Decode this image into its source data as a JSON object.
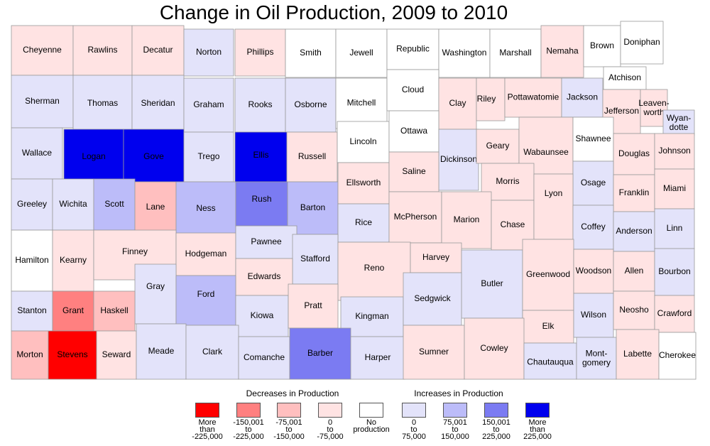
{
  "title": "Change in Oil Production, 2009 to 2010",
  "colors": {
    "dec_gt225k": "#ff0000",
    "dec_150_225k": "#ff8080",
    "dec_75_150k": "#ffbfbf",
    "dec_0_75k": "#ffe3e3",
    "none": "#ffffff",
    "inc_0_75k": "#e3e3fa",
    "inc_75_150k": "#bcbcf9",
    "inc_150_225k": "#7b7bf2",
    "inc_gt225k": "#0000ee"
  },
  "legend": {
    "decreases_heading": "Decreases in Production",
    "increases_heading": "Increases in Production",
    "classes": [
      {
        "key": "dec_gt225k",
        "lines": [
          "More",
          "than",
          "-225,000"
        ]
      },
      {
        "key": "dec_150_225k",
        "lines": [
          "-150,001",
          "to",
          "-225,000"
        ]
      },
      {
        "key": "dec_75_150k",
        "lines": [
          "-75,001",
          "to",
          "-150,000"
        ]
      },
      {
        "key": "dec_0_75k",
        "lines": [
          "0",
          "to",
          "-75,000"
        ]
      },
      {
        "key": "none",
        "lines": [
          "No",
          "production"
        ]
      },
      {
        "key": "inc_0_75k",
        "lines": [
          "0",
          "to",
          "75,000"
        ]
      },
      {
        "key": "inc_75_150k",
        "lines": [
          "75,001",
          "to",
          "150,000"
        ]
      },
      {
        "key": "inc_150_225k",
        "lines": [
          "150,001",
          "to",
          "225,000"
        ]
      },
      {
        "key": "inc_gt225k",
        "lines": [
          "More",
          "than",
          "225,000"
        ]
      }
    ]
  },
  "counties": [
    {
      "name": "Cheyenne",
      "class": "dec_0_75k"
    },
    {
      "name": "Rawlins",
      "class": "dec_0_75k"
    },
    {
      "name": "Decatur",
      "class": "dec_0_75k"
    },
    {
      "name": "Norton",
      "class": "inc_0_75k"
    },
    {
      "name": "Phillips",
      "class": "dec_0_75k"
    },
    {
      "name": "Smith",
      "class": "none"
    },
    {
      "name": "Jewell",
      "class": "none"
    },
    {
      "name": "Republic",
      "class": "none"
    },
    {
      "name": "Washington",
      "class": "none"
    },
    {
      "name": "Marshall",
      "class": "none"
    },
    {
      "name": "Nemaha",
      "class": "dec_0_75k"
    },
    {
      "name": "Brown",
      "class": "none"
    },
    {
      "name": "Doniphan",
      "class": "none"
    },
    {
      "name": "Atchison",
      "class": "none"
    },
    {
      "name": "Sherman",
      "class": "inc_0_75k"
    },
    {
      "name": "Thomas",
      "class": "inc_0_75k"
    },
    {
      "name": "Sheridan",
      "class": "inc_0_75k"
    },
    {
      "name": "Graham",
      "class": "inc_0_75k"
    },
    {
      "name": "Rooks",
      "class": "inc_0_75k"
    },
    {
      "name": "Osborne",
      "class": "inc_0_75k"
    },
    {
      "name": "Mitchell",
      "class": "none"
    },
    {
      "name": "Cloud",
      "class": "none"
    },
    {
      "name": "Clay",
      "class": "dec_0_75k"
    },
    {
      "name": "Riley",
      "class": "dec_0_75k"
    },
    {
      "name": "Pottawatomie",
      "class": "dec_0_75k"
    },
    {
      "name": "Jackson",
      "class": "inc_0_75k"
    },
    {
      "name": "Jefferson",
      "class": "dec_0_75k"
    },
    {
      "name": "Leaven-worth",
      "class": "dec_0_75k",
      "lines": [
        "Leaven-",
        "worth"
      ]
    },
    {
      "name": "Wyan-dotte",
      "class": "inc_0_75k",
      "lines": [
        "Wyan-",
        "dotte"
      ]
    },
    {
      "name": "Wallace",
      "class": "inc_0_75k"
    },
    {
      "name": "Logan",
      "class": "inc_gt225k"
    },
    {
      "name": "Gove",
      "class": "inc_gt225k"
    },
    {
      "name": "Trego",
      "class": "inc_0_75k"
    },
    {
      "name": "Ellis",
      "class": "inc_gt225k"
    },
    {
      "name": "Russell",
      "class": "dec_0_75k"
    },
    {
      "name": "Lincoln",
      "class": "none"
    },
    {
      "name": "Ottawa",
      "class": "none"
    },
    {
      "name": "Dickinson",
      "class": "inc_0_75k"
    },
    {
      "name": "Geary",
      "class": "dec_0_75k"
    },
    {
      "name": "Wabaunsee",
      "class": "dec_0_75k"
    },
    {
      "name": "Shawnee",
      "class": "none"
    },
    {
      "name": "Douglas",
      "class": "dec_0_75k"
    },
    {
      "name": "Johnson",
      "class": "dec_0_75k"
    },
    {
      "name": "Greeley",
      "class": "inc_0_75k"
    },
    {
      "name": "Wichita",
      "class": "inc_0_75k"
    },
    {
      "name": "Scott",
      "class": "inc_75_150k"
    },
    {
      "name": "Lane",
      "class": "dec_75_150k"
    },
    {
      "name": "Ness",
      "class": "inc_75_150k"
    },
    {
      "name": "Rush",
      "class": "inc_150_225k"
    },
    {
      "name": "Barton",
      "class": "inc_75_150k"
    },
    {
      "name": "Ellsworth",
      "class": "dec_0_75k"
    },
    {
      "name": "Saline",
      "class": "dec_0_75k"
    },
    {
      "name": "Morris",
      "class": "dec_0_75k"
    },
    {
      "name": "Osage",
      "class": "inc_0_75k"
    },
    {
      "name": "Franklin",
      "class": "dec_0_75k"
    },
    {
      "name": "Miami",
      "class": "dec_0_75k"
    },
    {
      "name": "Rice",
      "class": "inc_0_75k"
    },
    {
      "name": "McPherson",
      "class": "dec_0_75k"
    },
    {
      "name": "Marion",
      "class": "dec_0_75k"
    },
    {
      "name": "Chase",
      "class": "dec_0_75k"
    },
    {
      "name": "Lyon",
      "class": "dec_0_75k"
    },
    {
      "name": "Coffey",
      "class": "inc_0_75k"
    },
    {
      "name": "Anderson",
      "class": "inc_0_75k"
    },
    {
      "name": "Linn",
      "class": "inc_0_75k"
    },
    {
      "name": "Hamilton",
      "class": "none"
    },
    {
      "name": "Kearny",
      "class": "dec_0_75k"
    },
    {
      "name": "Finney",
      "class": "dec_0_75k"
    },
    {
      "name": "Hodgeman",
      "class": "dec_0_75k"
    },
    {
      "name": "Pawnee",
      "class": "inc_0_75k"
    },
    {
      "name": "Stafford",
      "class": "inc_0_75k"
    },
    {
      "name": "Edwards",
      "class": "dec_0_75k"
    },
    {
      "name": "Reno",
      "class": "dec_0_75k"
    },
    {
      "name": "Harvey",
      "class": "dec_0_75k"
    },
    {
      "name": "Butler",
      "class": "inc_0_75k"
    },
    {
      "name": "Greenwood",
      "class": "dec_0_75k"
    },
    {
      "name": "Woodson",
      "class": "dec_0_75k"
    },
    {
      "name": "Allen",
      "class": "dec_0_75k"
    },
    {
      "name": "Bourbon",
      "class": "inc_0_75k"
    },
    {
      "name": "Gray",
      "class": "inc_0_75k"
    },
    {
      "name": "Ford",
      "class": "inc_75_150k"
    },
    {
      "name": "Stanton",
      "class": "inc_0_75k"
    },
    {
      "name": "Grant",
      "class": "dec_150_225k"
    },
    {
      "name": "Haskell",
      "class": "dec_75_150k"
    },
    {
      "name": "Kiowa",
      "class": "inc_0_75k"
    },
    {
      "name": "Pratt",
      "class": "dec_0_75k"
    },
    {
      "name": "Kingman",
      "class": "inc_0_75k"
    },
    {
      "name": "Sedgwick",
      "class": "inc_0_75k"
    },
    {
      "name": "Elk",
      "class": "dec_0_75k"
    },
    {
      "name": "Wilson",
      "class": "inc_0_75k"
    },
    {
      "name": "Neosho",
      "class": "dec_0_75k"
    },
    {
      "name": "Crawford",
      "class": "dec_0_75k"
    },
    {
      "name": "Morton",
      "class": "dec_75_150k"
    },
    {
      "name": "Stevens",
      "class": "dec_gt225k"
    },
    {
      "name": "Seward",
      "class": "dec_0_75k"
    },
    {
      "name": "Meade",
      "class": "inc_0_75k"
    },
    {
      "name": "Clark",
      "class": "inc_0_75k"
    },
    {
      "name": "Comanche",
      "class": "inc_0_75k"
    },
    {
      "name": "Barber",
      "class": "inc_150_225k"
    },
    {
      "name": "Harper",
      "class": "inc_0_75k"
    },
    {
      "name": "Sumner",
      "class": "dec_0_75k"
    },
    {
      "name": "Cowley",
      "class": "dec_0_75k"
    },
    {
      "name": "Chautauqua",
      "class": "inc_0_75k"
    },
    {
      "name": "Mont-gomery",
      "class": "inc_0_75k",
      "lines": [
        "Mont-",
        "gomery"
      ]
    },
    {
      "name": "Labette",
      "class": "dec_0_75k"
    },
    {
      "name": "Cherokee",
      "class": "none"
    }
  ]
}
